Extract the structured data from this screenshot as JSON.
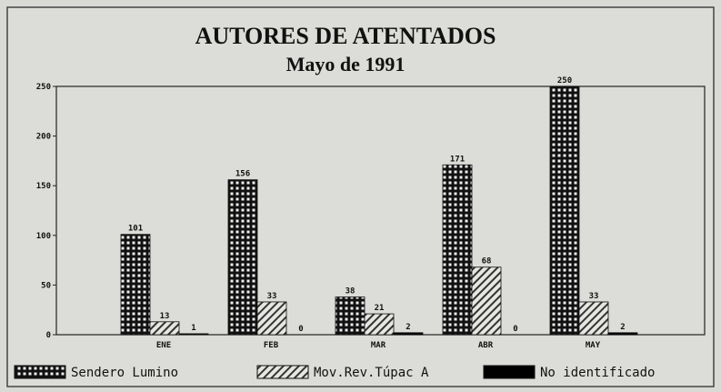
{
  "chart_data": {
    "type": "bar",
    "title": "AUTORES DE ATENTADOS",
    "subtitle": "Mayo de 1991",
    "categories": [
      "ENE",
      "FEB",
      "MAR",
      "ABR",
      "MAY"
    ],
    "series": [
      {
        "name": "Sendero Lumino",
        "color": "#111111",
        "values": [
          101,
          156,
          38,
          171,
          250
        ]
      },
      {
        "name": "Mov.Rev.Túpac A",
        "color": "#333333",
        "values": [
          13,
          33,
          21,
          68,
          33
        ]
      },
      {
        "name": "No identificado",
        "color": "#000000",
        "values": [
          1,
          0,
          2,
          0,
          2
        ]
      }
    ],
    "ylim": [
      0,
      250
    ],
    "yticks": [
      0,
      50,
      100,
      150,
      200,
      250
    ]
  }
}
